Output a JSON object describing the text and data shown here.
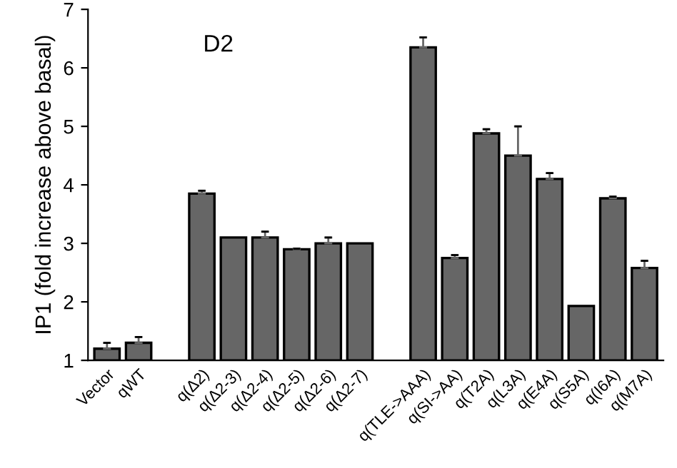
{
  "chart_data": {
    "type": "bar",
    "ylabel": "IP1 (fold increase above basal)",
    "categories": [
      "Vector",
      "qWT",
      null,
      "q(Δ2)",
      "q(Δ2-3)",
      "q(Δ2-4)",
      "q(Δ2-5)",
      "q(Δ2-6)",
      "q(Δ2-7)",
      null,
      "q(TLE->AAA)",
      "q(SI->AA)",
      "q(T2A)",
      "q(L3A)",
      "q(E4A)",
      "q(S5A)",
      "q(I6A)",
      "q(M7A)"
    ],
    "values": [
      1.2,
      1.3,
      null,
      3.85,
      3.1,
      3.1,
      2.9,
      3.0,
      3.0,
      null,
      6.35,
      2.75,
      4.88,
      4.5,
      4.1,
      1.93,
      3.77,
      2.58
    ],
    "errors": [
      [
        1.2,
        1.3
      ],
      [
        1.3,
        1.4
      ],
      null,
      [
        3.85,
        3.9
      ],
      null,
      [
        3.1,
        3.2
      ],
      [
        2.9,
        2.91
      ],
      [
        3.0,
        3.1
      ],
      null,
      null,
      [
        6.35,
        6.52
      ],
      [
        2.75,
        2.8
      ],
      [
        4.88,
        4.95
      ],
      [
        4.5,
        5.0
      ],
      [
        4.1,
        4.2
      ],
      null,
      [
        3.77,
        3.8
      ],
      [
        2.58,
        2.7
      ]
    ],
    "color": "#666666",
    "ylim": [
      1,
      7
    ],
    "yticks": [
      1,
      2,
      3,
      4,
      5,
      6,
      7
    ],
    "annotations": [
      "D2"
    ]
  }
}
